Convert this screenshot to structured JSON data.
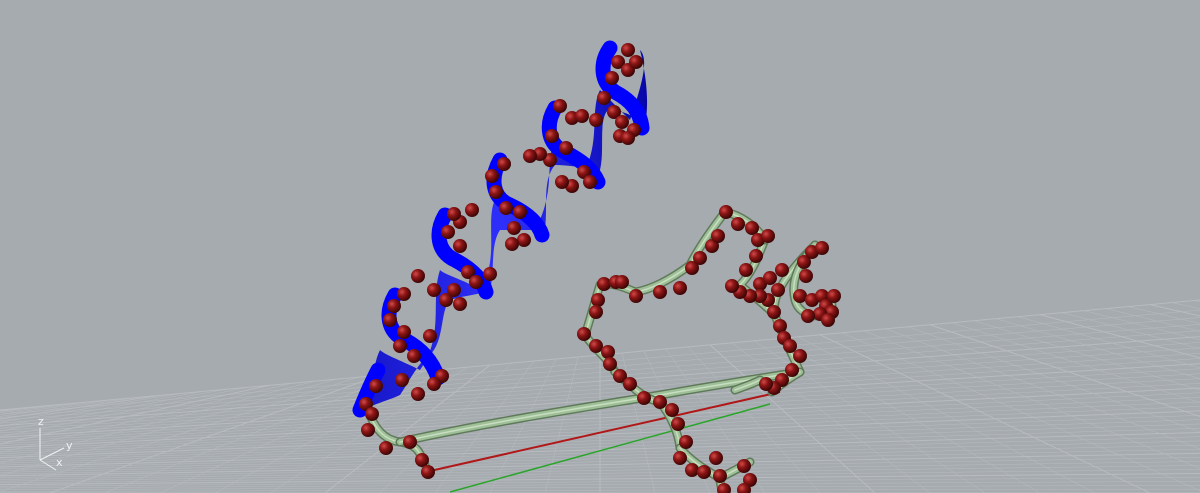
{
  "viewport": {
    "view": "3d-perspective",
    "background_color": "#a6abb0",
    "grid_visible": true,
    "grid_color": "#b8bcc1"
  },
  "axis_gizmo": {
    "z_label": "z",
    "y_label": "y",
    "x_label": "x"
  },
  "objects": {
    "helix_ribbon_color": "#0000ff",
    "atom_sphere_color": "#7a1010",
    "backbone_tube_color": "#9fbf98",
    "x_axis_color": "#b01818",
    "y_axis_color": "#2aa52a"
  }
}
